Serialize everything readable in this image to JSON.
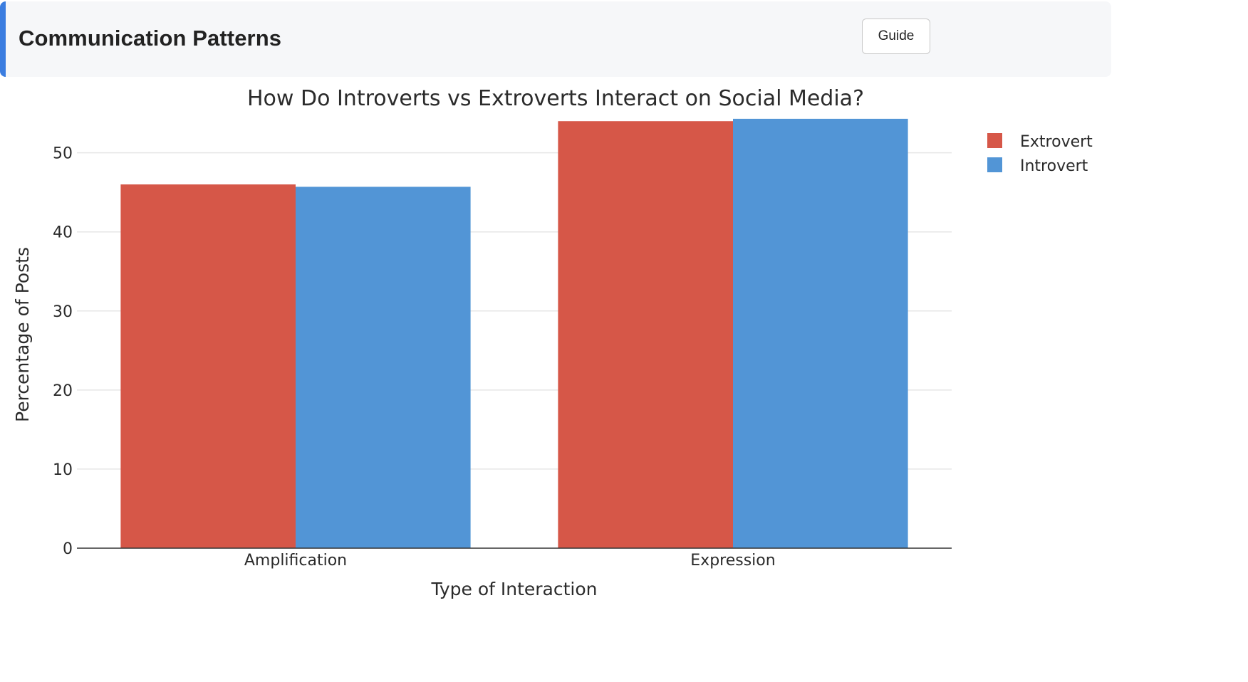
{
  "header": {
    "title": "Communication Patterns",
    "guide_label": "Guide",
    "accent_color": "#3b7de0"
  },
  "chart_data": {
    "type": "bar",
    "title": "How Do Introverts vs Extroverts Interact on Social Media?",
    "xlabel": "Type of Interaction",
    "ylabel": "Percentage of Posts",
    "categories": [
      "Amplification",
      "Expression"
    ],
    "series": [
      {
        "name": "Extrovert",
        "color": "#d65748",
        "values": [
          46.0,
          54.0
        ]
      },
      {
        "name": "Introvert",
        "color": "#5295d6",
        "values": [
          45.7,
          54.3
        ]
      }
    ],
    "ylim": [
      0,
      56
    ],
    "yticks": [
      0,
      10,
      20,
      30,
      40,
      50
    ],
    "grid": true,
    "legend_position": "top-right"
  }
}
